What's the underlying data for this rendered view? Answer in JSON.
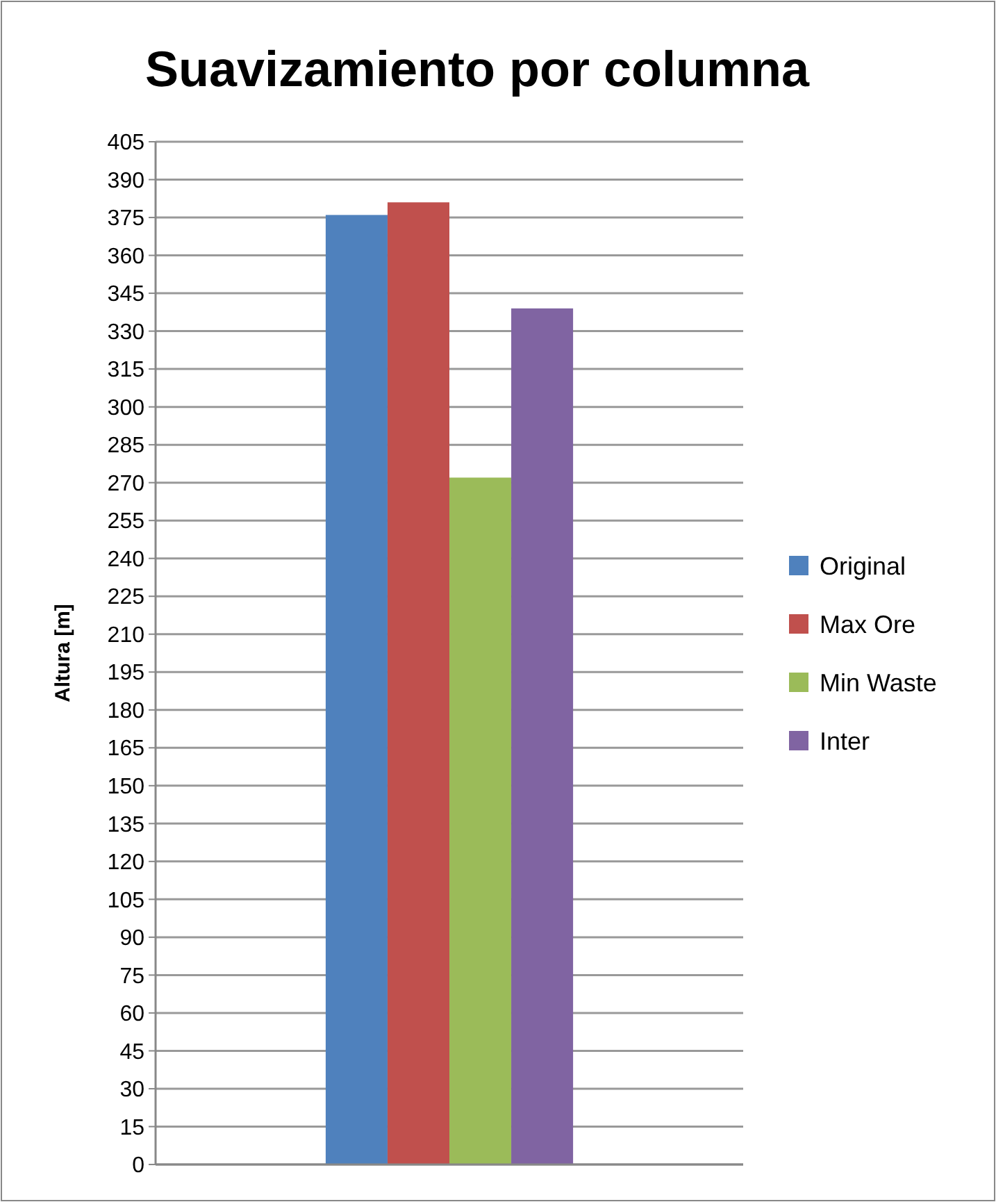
{
  "chart_data": {
    "type": "bar",
    "title": "Suavizamiento por columna",
    "ylabel": "Altura [m]",
    "categories": [
      null
    ],
    "series": [
      {
        "name": "Original",
        "color": "#4f81bd",
        "values": [
          376
        ]
      },
      {
        "name": "Max Ore",
        "color": "#c0504d",
        "values": [
          381
        ]
      },
      {
        "name": "Min Waste",
        "color": "#9bbb59",
        "values": [
          272
        ]
      },
      {
        "name": "Inter",
        "color": "#8064a2",
        "values": [
          339
        ]
      }
    ],
    "ylim": [
      0,
      405
    ],
    "yticks": [
      0,
      15,
      30,
      45,
      60,
      75,
      90,
      105,
      120,
      135,
      150,
      165,
      180,
      195,
      210,
      225,
      240,
      255,
      270,
      285,
      300,
      315,
      330,
      345,
      360,
      375,
      390,
      405
    ],
    "grid": "y",
    "legend": "right"
  }
}
